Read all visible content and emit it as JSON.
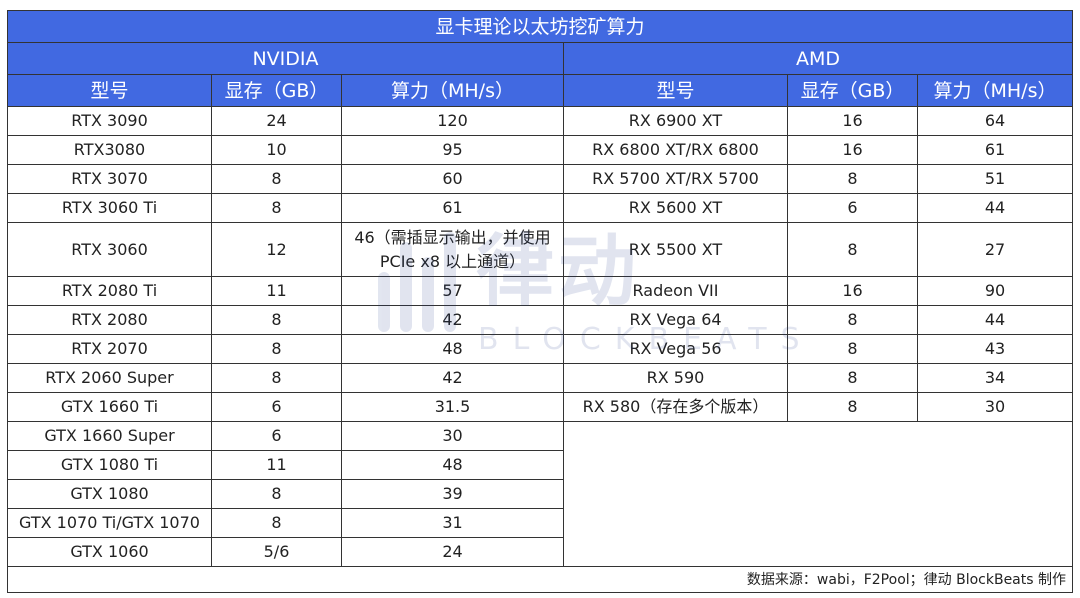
{
  "title": "显卡理论以太坊挖矿算力",
  "nvidia": {
    "brand": "NVIDIA",
    "headers": [
      "型号",
      "显存（GB）",
      "算力（MH/s）"
    ],
    "rows": [
      {
        "model": "RTX 3090",
        "vram": "24",
        "hashrate": "120"
      },
      {
        "model": "RTX3080",
        "vram": "10",
        "hashrate": "95"
      },
      {
        "model": "RTX 3070",
        "vram": "8",
        "hashrate": "60"
      },
      {
        "model": "RTX 3060 Ti",
        "vram": "8",
        "hashrate": "61"
      },
      {
        "model": "RTX 3060",
        "vram": "12",
        "hashrate": "46（需插显示输出，并使用 PCIe x8 以上通道）"
      },
      {
        "model": "RTX 2080 Ti",
        "vram": "11",
        "hashrate": "57"
      },
      {
        "model": "RTX 2080",
        "vram": "8",
        "hashrate": "42"
      },
      {
        "model": "RTX 2070",
        "vram": "8",
        "hashrate": "48"
      },
      {
        "model": "RTX 2060 Super",
        "vram": "8",
        "hashrate": "42"
      },
      {
        "model": "GTX 1660 Ti",
        "vram": "6",
        "hashrate": "31.5"
      },
      {
        "model": "GTX 1660 Super",
        "vram": "6",
        "hashrate": "30"
      },
      {
        "model": "GTX 1080 Ti",
        "vram": "11",
        "hashrate": "48"
      },
      {
        "model": "GTX 1080",
        "vram": "8",
        "hashrate": "39"
      },
      {
        "model": "GTX 1070 Ti/GTX 1070",
        "vram": "8",
        "hashrate": "31"
      },
      {
        "model": "GTX 1060",
        "vram": "5/6",
        "hashrate": "24"
      }
    ]
  },
  "amd": {
    "brand": "AMD",
    "headers": [
      "型号",
      "显存（GB）",
      "算力（MH/s）"
    ],
    "rows": [
      {
        "model": "RX 6900 XT",
        "vram": "16",
        "hashrate": "64"
      },
      {
        "model": "RX 6800 XT/RX 6800",
        "vram": "16",
        "hashrate": "61"
      },
      {
        "model": "RX 5700 XT/RX 5700",
        "vram": "8",
        "hashrate": "51"
      },
      {
        "model": "RX 5600 XT",
        "vram": "6",
        "hashrate": "44"
      },
      {
        "model": "RX 5500 XT",
        "vram": "8",
        "hashrate": "27"
      },
      {
        "model": "Radeon VII",
        "vram": "16",
        "hashrate": "90"
      },
      {
        "model": "RX Vega 64",
        "vram": "8",
        "hashrate": "44"
      },
      {
        "model": "RX Vega 56",
        "vram": "8",
        "hashrate": "43"
      },
      {
        "model": "RX 590",
        "vram": "8",
        "hashrate": "34"
      },
      {
        "model": "RX 580（存在多个版本）",
        "vram": "8",
        "hashrate": "30"
      }
    ]
  },
  "footer": "数据来源：wabi，F2Pool；律动 BlockBeats 制作",
  "watermark": {
    "cn": "律动",
    "en": "BLOCKBEATS"
  },
  "colors": {
    "header_bg": "#4169e1",
    "header_text": "#ffffff",
    "border": "#333333"
  }
}
